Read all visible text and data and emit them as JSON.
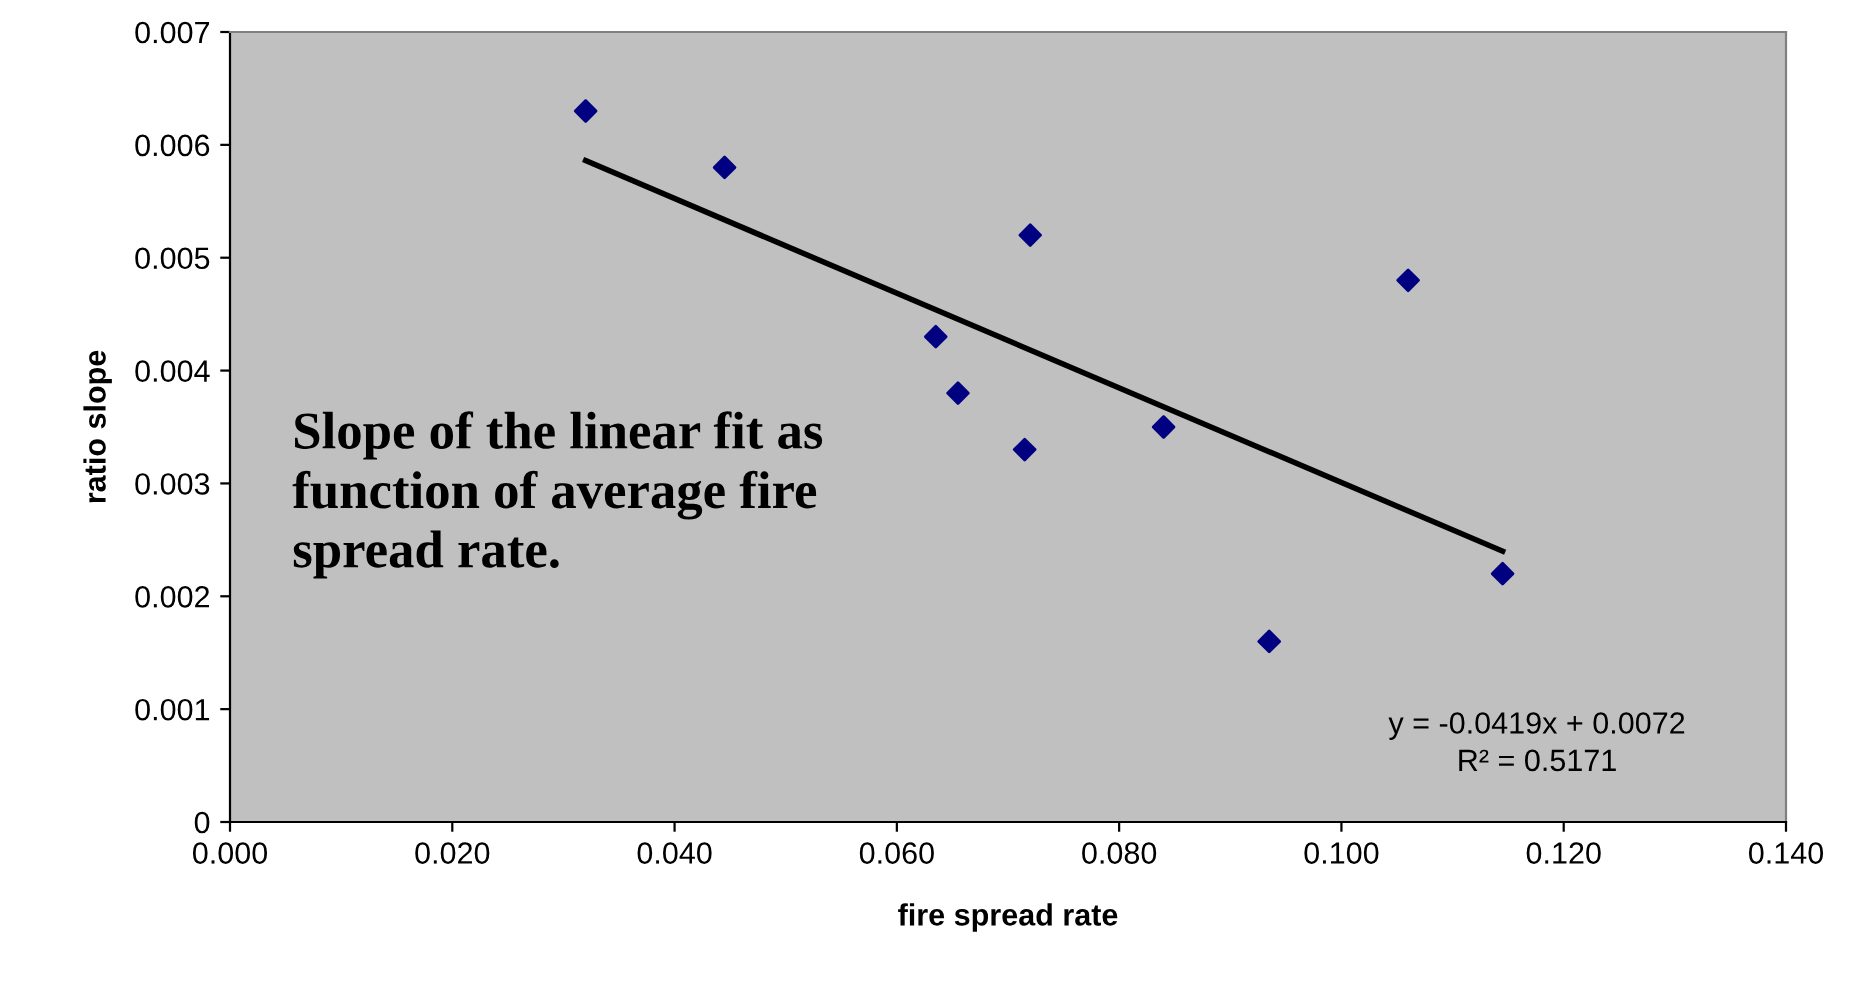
{
  "chart_data": {
    "type": "scatter",
    "xlabel": "fire spread rate",
    "ylabel": "ratio slope",
    "series": [
      {
        "color": "#000080",
        "marker": "diamond",
        "x": [
          0.032,
          0.0445,
          0.072,
          0.0635,
          0.0655,
          0.0715,
          0.084,
          0.0935,
          0.106,
          0.1145
        ],
        "values": [
          0.0063,
          0.0058,
          0.0052,
          0.0043,
          0.0038,
          0.0033,
          0.0035,
          0.0016,
          0.0048,
          0.0022
        ]
      },
      {
        "type": "line",
        "color": "#000000",
        "marker": "none",
        "x": [
          0.032,
          0.1145
        ],
        "values": [
          0.00586,
          0.0024
        ]
      }
    ],
    "xlim": [
      0,
      0.14
    ],
    "ylim": [
      0,
      0.007
    ],
    "xticks": [
      {
        "value": 0,
        "label": "0.000"
      },
      {
        "value": 0.02,
        "label": "0.020"
      },
      {
        "value": 0.04,
        "label": "0.040"
      },
      {
        "value": 0.06,
        "label": "0.060"
      },
      {
        "value": 0.08,
        "label": "0.080"
      },
      {
        "value": 0.1,
        "label": "0.100"
      },
      {
        "value": 0.12,
        "label": "0.120"
      },
      {
        "value": 0.14,
        "label": "0.140"
      }
    ],
    "yticks": [
      0,
      0.001,
      0.002,
      0.003,
      0.004,
      0.005,
      0.006,
      0.007
    ],
    "grid": false,
    "legend": false,
    "annotations": [
      "Slope of the linear fit as\nfunction of average fire\nspread rate.",
      "y = -0.0419x + 0.0072\nR² = 0.5171"
    ]
  }
}
